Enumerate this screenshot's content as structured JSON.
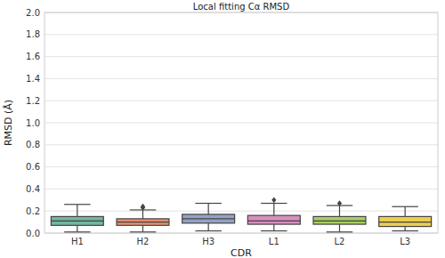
{
  "chart_data": {
    "type": "box",
    "title": "Local fitting Cα RMSD",
    "x_label": "CDR",
    "y_label": "RMSD (Å)",
    "categories": [
      "H1",
      "H2",
      "H3",
      "L1",
      "L2",
      "L3"
    ],
    "whisker_low": [
      0.01,
      0.01,
      0.02,
      0.02,
      0.01,
      0.02
    ],
    "q1": [
      0.07,
      0.07,
      0.09,
      0.08,
      0.08,
      0.06
    ],
    "median": [
      0.11,
      0.1,
      0.13,
      0.11,
      0.11,
      0.1
    ],
    "q3": [
      0.15,
      0.13,
      0.17,
      0.16,
      0.15,
      0.15
    ],
    "whisker_high": [
      0.26,
      0.21,
      0.27,
      0.27,
      0.25,
      0.24
    ],
    "outliers": [
      [],
      [
        0.23,
        0.24
      ],
      [],
      [
        0.3
      ],
      [
        0.27
      ],
      []
    ],
    "colors": [
      "#72b6a1",
      "#e68f6e",
      "#93a1c3",
      "#d98fbe",
      "#a6ce61",
      "#ecce4c"
    ],
    "ylim": [
      0,
      2
    ],
    "yticks": [
      {
        "value": 0,
        "label": "0.0"
      },
      {
        "value": 0.2,
        "label": "0.2"
      },
      {
        "value": 0.4,
        "label": "0.4"
      },
      {
        "value": 0.6,
        "label": "0.6"
      },
      {
        "value": 0.8,
        "label": "0.8"
      },
      {
        "value": 1.0,
        "label": "1.0"
      },
      {
        "value": 1.2,
        "label": "1.2"
      },
      {
        "value": 1.4,
        "label": "1.4"
      },
      {
        "value": 1.6,
        "label": "1.6"
      },
      {
        "value": 1.8,
        "label": "1.8"
      },
      {
        "value": 2.0,
        "label": "2.0"
      }
    ],
    "grid": true
  }
}
